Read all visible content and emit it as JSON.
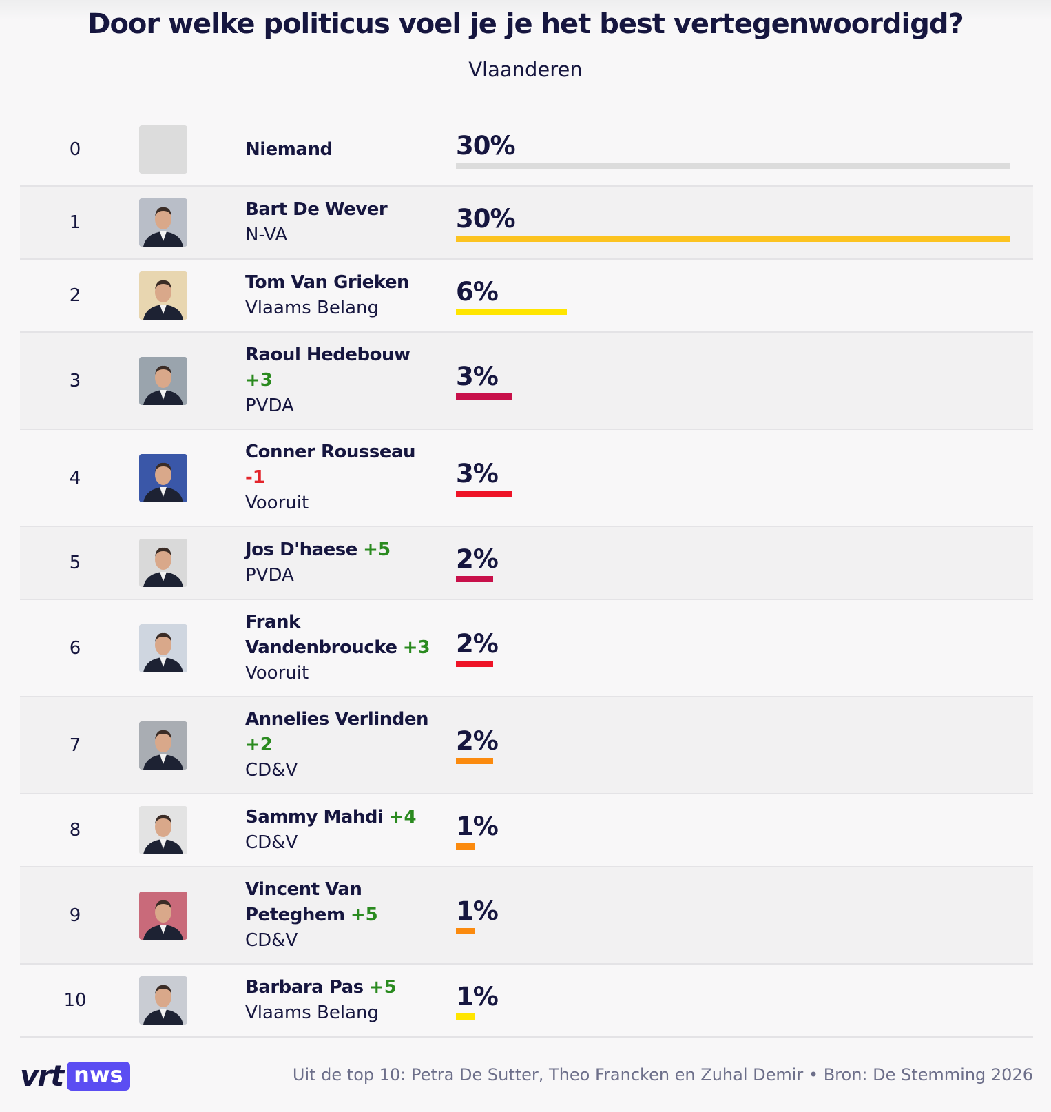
{
  "header": {
    "title": "Door welke politicus voel je je het best vertegenwoordigd?",
    "subtitle": "Vlaanderen"
  },
  "table": {
    "rows": [
      {
        "rank": 0,
        "name": "Niemand",
        "value": 30,
        "value_label": "30%",
        "color": "#dcdcdc"
      },
      {
        "rank": 1,
        "name": "Bart De Wever",
        "party": "N-VA",
        "value": 30,
        "value_label": "30%",
        "color": "#fcc320"
      },
      {
        "rank": 2,
        "name": "Tom Van Grieken",
        "party": "Vlaams Belang",
        "value": 6,
        "value_label": "6%",
        "color": "#ffe500"
      },
      {
        "rank": 3,
        "name": "Raoul Hedebouw",
        "change": "+3",
        "party": "PVDA",
        "value": 3,
        "value_label": "3%",
        "color": "#c8104a"
      },
      {
        "rank": 4,
        "name": "Conner Rousseau",
        "change": "-1",
        "party": "Vooruit",
        "value": 3,
        "value_label": "3%",
        "color": "#ee1427"
      },
      {
        "rank": 5,
        "name": "Jos D'haese",
        "change": "+5",
        "party": "PVDA",
        "value": 2,
        "value_label": "2%",
        "color": "#c8104a"
      },
      {
        "rank": 6,
        "name": "Frank Vandenbroucke",
        "change": "+3",
        "party": "Vooruit",
        "value": 2,
        "value_label": "2%",
        "color": "#ee1427"
      },
      {
        "rank": 7,
        "name": "Annelies Verlinden",
        "change": "+2",
        "party": "CD&V",
        "value": 2,
        "value_label": "2%",
        "color": "#fb8a0e"
      },
      {
        "rank": 8,
        "name": "Sammy Mahdi",
        "change": "+4",
        "party": "CD&V",
        "value": 1,
        "value_label": "1%",
        "color": "#fb8a0e"
      },
      {
        "rank": 9,
        "name": "Vincent Van Peteghem",
        "change": "+5",
        "party": "CD&V",
        "value": 1,
        "value_label": "1%",
        "color": "#fb8a0e"
      },
      {
        "rank": 10,
        "name": "Barbara Pas",
        "change": "+5",
        "party": "Vlaams Belang",
        "value": 1,
        "value_label": "1%",
        "color": "#ffe500"
      }
    ]
  },
  "footer": {
    "logo": {
      "brand": "vrt",
      "product": "nws"
    },
    "note": "Uit de top 10: Petra De Sutter, Theo Francken en Zuhal Demir • Bron: De Stemming 2026"
  }
}
